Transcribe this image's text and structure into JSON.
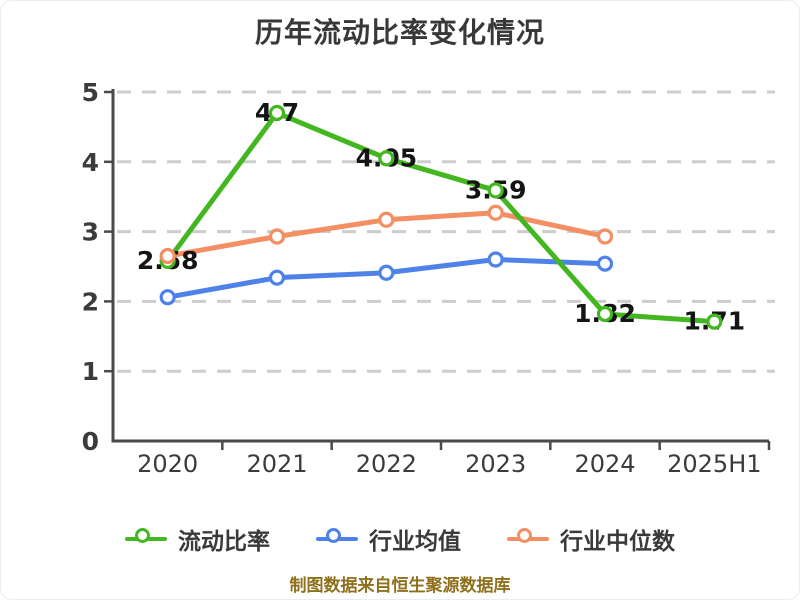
{
  "title": "历年流动比率变化情况",
  "footer": "制图数据来自恒生聚源数据库",
  "colors": {
    "green": "#43b71f",
    "blue": "#4f82e8",
    "orange": "#f48e63",
    "grid": "#cdcdcd",
    "axis": "#4a4a4a",
    "tick_text": "#3b3b3b",
    "value_label": "#141414",
    "marker_fill": "#ffffff",
    "title_text": "#383838",
    "legend_text": "#3a3a3a",
    "footer_text": "#8e701c"
  },
  "chart_data": {
    "type": "line",
    "title": "历年流动比率变化情况",
    "categories": [
      "2020",
      "2021",
      "2022",
      "2023",
      "2024",
      "2025H1"
    ],
    "series": [
      {
        "name": "流动比率",
        "color_key": "green",
        "values": [
          2.58,
          4.7,
          4.05,
          3.59,
          1.82,
          1.71
        ],
        "point_labels": [
          "2.58",
          "4.7",
          "4.05",
          "3.59",
          "1.82",
          "1.71"
        ]
      },
      {
        "name": "行业均值",
        "color_key": "blue",
        "values": [
          2.06,
          2.34,
          2.41,
          2.6,
          2.54,
          null
        ],
        "point_labels": []
      },
      {
        "name": "行业中位数",
        "color_key": "orange",
        "values": [
          2.65,
          2.93,
          3.17,
          3.27,
          2.93,
          null
        ],
        "point_labels": []
      }
    ],
    "xlabel": "",
    "ylabel": "",
    "ylim": [
      0,
      5
    ],
    "yticks": [
      0,
      1,
      2,
      3,
      4,
      5
    ],
    "grid": "horizontal-dashed",
    "legend_position": "bottom"
  }
}
